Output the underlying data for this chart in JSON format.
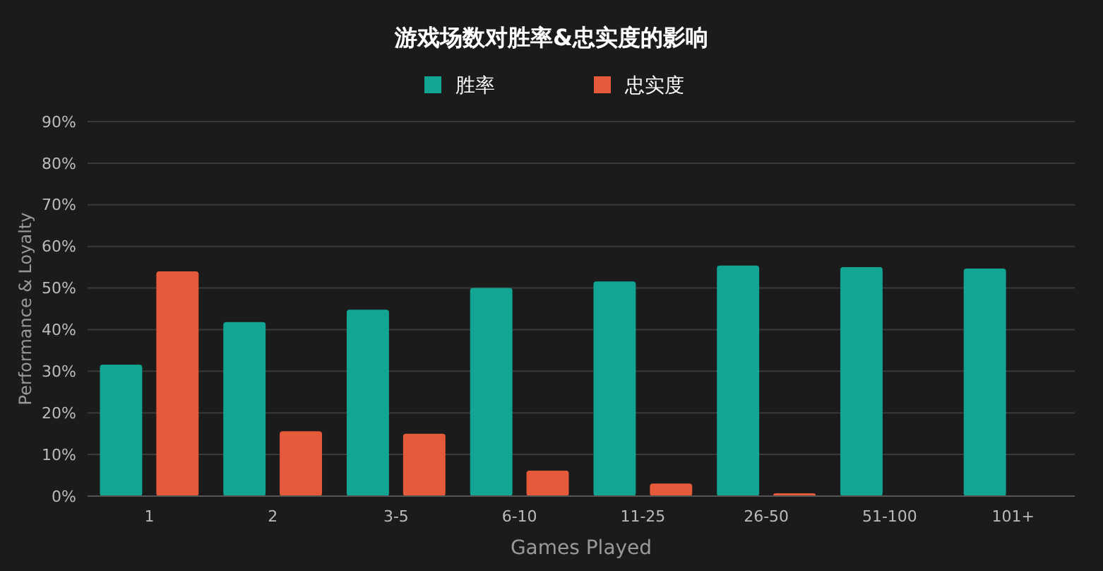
{
  "chart_data": {
    "type": "bar",
    "title": "游戏场数对胜率&忠实度的影响",
    "xlabel": "Games Played",
    "ylabel": "Performance & Loyalty",
    "categories": [
      "1",
      "2",
      "3-5",
      "6-10",
      "11-25",
      "26-50",
      "51-100",
      "101+"
    ],
    "series": [
      {
        "name": "胜率",
        "color": "#12a594",
        "values": [
          31.6,
          41.8,
          44.8,
          50,
          51.6,
          55.4,
          55,
          54.7
        ]
      },
      {
        "name": "忠实度",
        "color": "#e45a3a",
        "values": [
          54,
          15.6,
          15,
          6.1,
          3,
          0.7,
          null,
          null
        ]
      }
    ],
    "ylim": [
      0,
      90
    ],
    "yticks": [
      {
        "value": 0,
        "label": "0%"
      },
      {
        "value": 10,
        "label": "10%"
      },
      {
        "value": 20,
        "label": "20%"
      },
      {
        "value": 30,
        "label": "30%"
      },
      {
        "value": 40,
        "label": "40%"
      },
      {
        "value": 50,
        "label": "50%"
      },
      {
        "value": 60,
        "label": "60%"
      },
      {
        "value": 70,
        "label": "70%"
      },
      {
        "value": 80,
        "label": "80%"
      },
      {
        "value": 90,
        "label": "90%"
      }
    ],
    "grid": "y",
    "legend": "top"
  }
}
